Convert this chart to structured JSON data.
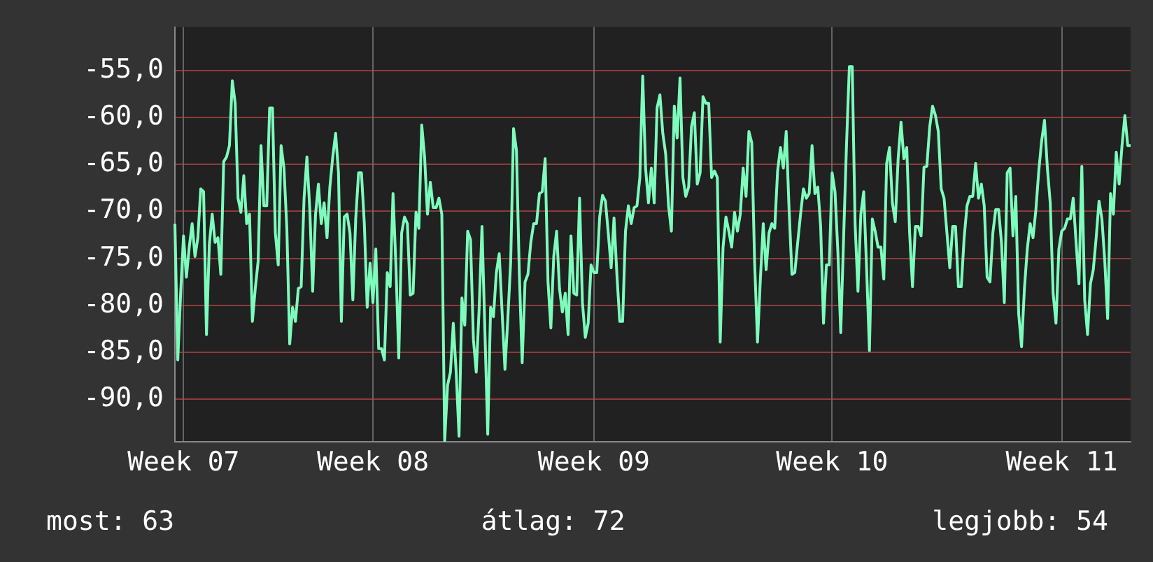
{
  "chart_data": {
    "type": "line",
    "color": "#7dfcbc",
    "grid": true,
    "legend": false,
    "marker": "none",
    "line_style": "solid",
    "categories": [
      null,
      null,
      null,
      "Week 07",
      null,
      null,
      null,
      null,
      null,
      null,
      null,
      null,
      null,
      null,
      null,
      null,
      null,
      null,
      null,
      null,
      null,
      null,
      null,
      null,
      null,
      null,
      null,
      null,
      null,
      null,
      null,
      null,
      null,
      null,
      null,
      null,
      null,
      null,
      null,
      null,
      null,
      null,
      null,
      null,
      null,
      null,
      null,
      null,
      null,
      null,
      null,
      null,
      null,
      null,
      null,
      null,
      null,
      null,
      null,
      null,
      null,
      null,
      null,
      null,
      null,
      null,
      null,
      null,
      null,
      "Week 08",
      null,
      null,
      null,
      null,
      null,
      null,
      null,
      null,
      null,
      null,
      null,
      null,
      null,
      null,
      null,
      null,
      null,
      null,
      null,
      null,
      null,
      null,
      null,
      null,
      null,
      null,
      null,
      null,
      null,
      null,
      null,
      null,
      null,
      null,
      null,
      null,
      null,
      null,
      null,
      null,
      null,
      null,
      null,
      null,
      null,
      null,
      null,
      null,
      null,
      null,
      null,
      null,
      null,
      null,
      null,
      null,
      null,
      null,
      null,
      null,
      null,
      null,
      null,
      null,
      null,
      null,
      null,
      null,
      null,
      null,
      null,
      null,
      null,
      null,
      null,
      null,
      "Week 09",
      null,
      null,
      null,
      null,
      null,
      null,
      null,
      null,
      null,
      null,
      null,
      null,
      null,
      null,
      null,
      null,
      null,
      null,
      null,
      null,
      null,
      null,
      null,
      null,
      null,
      null,
      null,
      null,
      null,
      null,
      null,
      null,
      null,
      null,
      null,
      null,
      null,
      null,
      null,
      null,
      null,
      null,
      null,
      null,
      null,
      null,
      null,
      null,
      null,
      null,
      null,
      null,
      null,
      null,
      null,
      null,
      null,
      null,
      null,
      null,
      null,
      null,
      null,
      null,
      null,
      null,
      null,
      null,
      null,
      null,
      null,
      null,
      null,
      null,
      null,
      null,
      null,
      null,
      null,
      null,
      null,
      null,
      "Week 10",
      null,
      null,
      null,
      null,
      null,
      null,
      null,
      null,
      null,
      null,
      null,
      null,
      null,
      null,
      null,
      null,
      null,
      null,
      null,
      null,
      null,
      null,
      null,
      null,
      null,
      null,
      null,
      null,
      null,
      null,
      null,
      null,
      null,
      null,
      null,
      null,
      null,
      null,
      null,
      null,
      null,
      null,
      null,
      null,
      null,
      null,
      null,
      null,
      null,
      null,
      null,
      null,
      null,
      null,
      null,
      null,
      null,
      null,
      null,
      null,
      null,
      null,
      null,
      null,
      null,
      null,
      null,
      null,
      null,
      null,
      null,
      null,
      null,
      null,
      null,
      null,
      null,
      null,
      null,
      "Week 11",
      null,
      null,
      null,
      null,
      null,
      null,
      null,
      null,
      null,
      null,
      null,
      null,
      null,
      null,
      null,
      null,
      null,
      null,
      null,
      null,
      null,
      null,
      null,
      null
    ],
    "ylim": [
      -94.5,
      -50.4
    ],
    "yticks": [
      {
        "value": -90,
        "label": "-90,0"
      },
      {
        "value": -85,
        "label": "-85,0"
      },
      {
        "value": -80,
        "label": "-80,0"
      },
      {
        "value": -75,
        "label": "-75,0"
      },
      {
        "value": -70,
        "label": "-70,0"
      },
      {
        "value": -65,
        "label": "-65,0"
      },
      {
        "value": -60,
        "label": "-60,0"
      },
      {
        "value": -55,
        "label": "-55,0"
      }
    ],
    "annotations": [
      "most: 63",
      "átlag: 72",
      "legjobb: 54"
    ],
    "values": [
      -71.3,
      -85.8,
      -78.7,
      -72.6,
      -77.0,
      -73.8,
      -71.3,
      -74.8,
      -72.8,
      -67.6,
      -67.9,
      -83.1,
      -73.5,
      -70.3,
      -73.3,
      -72.8,
      -76.7,
      -64.7,
      -64.2,
      -63.0,
      -56.1,
      -58.5,
      -68.6,
      -70.1,
      -66.2,
      -71.3,
      -70.3,
      -81.7,
      -78.2,
      -75.3,
      -63.0,
      -69.4,
      -69.4,
      -59.0,
      -59.0,
      -72.3,
      -75.7,
      -63.0,
      -65.4,
      -71.8,
      -84.1,
      -80.2,
      -81.7,
      -78.2,
      -78.0,
      -68.6,
      -64.2,
      -69.8,
      -78.5,
      -70.3,
      -67.1,
      -71.3,
      -69.1,
      -72.8,
      -67.4,
      -64.2,
      -61.7,
      -65.9,
      -81.7,
      -70.6,
      -70.3,
      -72.3,
      -79.4,
      -70.8,
      -65.9,
      -65.9,
      -71.3,
      -80.2,
      -75.5,
      -79.7,
      -74.0,
      -84.6,
      -84.6,
      -85.8,
      -76.5,
      -78.0,
      -68.1,
      -75.7,
      -85.6,
      -72.3,
      -70.6,
      -71.3,
      -78.9,
      -78.7,
      -70.1,
      -71.8,
      -60.8,
      -64.2,
      -70.3,
      -66.9,
      -69.6,
      -69.6,
      -68.6,
      -70.3,
      -94.4,
      -88.5,
      -87.1,
      -81.9,
      -87.1,
      -93.9,
      -79.2,
      -82.1,
      -72.1,
      -73.0,
      -83.6,
      -87.1,
      -80.4,
      -71.6,
      -82.6,
      -93.7,
      -80.2,
      -81.2,
      -76.5,
      -74.5,
      -80.7,
      -86.8,
      -81.4,
      -75.3,
      -61.2,
      -63.5,
      -76.5,
      -86.1,
      -77.5,
      -76.7,
      -73.3,
      -71.3,
      -71.3,
      -68.1,
      -67.9,
      -64.4,
      -77.5,
      -82.4,
      -74.8,
      -72.1,
      -78.2,
      -80.7,
      -78.7,
      -83.1,
      -72.6,
      -78.7,
      -78.9,
      -68.6,
      -79.7,
      -83.4,
      -81.9,
      -75.7,
      -76.5,
      -76.5,
      -70.6,
      -68.3,
      -68.9,
      -72.3,
      -76.0,
      -70.7,
      -76.7,
      -81.7,
      -81.7,
      -72.1,
      -69.4,
      -71.3,
      -69.6,
      -69.4,
      -66.4,
      -55.6,
      -65.4,
      -69.1,
      -65.4,
      -69.1,
      -59.0,
      -57.6,
      -61.7,
      -63.9,
      -69.4,
      -72.1,
      -58.8,
      -62.2,
      -55.8,
      -66.4,
      -68.4,
      -67.4,
      -61.0,
      -59.5,
      -67.1,
      -65.9,
      -57.8,
      -58.5,
      -58.5,
      -66.4,
      -65.7,
      -66.4,
      -83.9,
      -73.8,
      -70.6,
      -72.1,
      -73.8,
      -70.1,
      -72.1,
      -70.3,
      -65.4,
      -68.4,
      -61.5,
      -62.7,
      -75.5,
      -83.9,
      -77.2,
      -71.3,
      -76.2,
      -72.3,
      -71.3,
      -71.8,
      -65.7,
      -63.2,
      -65.4,
      -61.5,
      -69.8,
      -76.7,
      -76.5,
      -73.3,
      -70.3,
      -67.6,
      -68.6,
      -68.1,
      -63.0,
      -68.1,
      -67.4,
      -71.6,
      -81.9,
      -75.7,
      -75.7,
      -65.9,
      -67.9,
      -74.3,
      -82.9,
      -72.8,
      -63.0,
      -54.6,
      -54.6,
      -71.3,
      -78.5,
      -70.3,
      -67.9,
      -76.0,
      -84.8,
      -70.8,
      -72.1,
      -73.8,
      -73.8,
      -77.2,
      -64.9,
      -63.2,
      -69.1,
      -71.1,
      -64.4,
      -60.5,
      -64.4,
      -63.2,
      -72.3,
      -78.0,
      -71.6,
      -71.6,
      -72.6,
      -65.3,
      -65.2,
      -61.0,
      -58.8,
      -59.8,
      -61.5,
      -67.6,
      -68.6,
      -72.3,
      -76.0,
      -71.6,
      -71.6,
      -78.0,
      -78.0,
      -72.8,
      -69.4,
      -68.4,
      -68.4,
      -64.9,
      -68.6,
      -67.1,
      -69.4,
      -77.0,
      -77.5,
      -72.3,
      -69.8,
      -69.8,
      -73.3,
      -79.7,
      -65.9,
      -65.4,
      -72.6,
      -68.4,
      -80.9,
      -84.4,
      -78.2,
      -74.0,
      -71.3,
      -72.8,
      -69.8,
      -65.7,
      -62.5,
      -60.3,
      -65.4,
      -69.1,
      -78.7,
      -81.9,
      -74.0,
      -72.1,
      -71.8,
      -70.8,
      -70.8,
      -68.6,
      -73.3,
      -77.7,
      -65.2,
      -79.4,
      -83.1,
      -77.7,
      -76.2,
      -72.8,
      -68.9,
      -70.8,
      -75.3,
      -81.4,
      -68.1,
      -70.3,
      -63.7,
      -67.1,
      -63.0,
      -59.8,
      -63.0,
      -63.0
    ]
  }
}
